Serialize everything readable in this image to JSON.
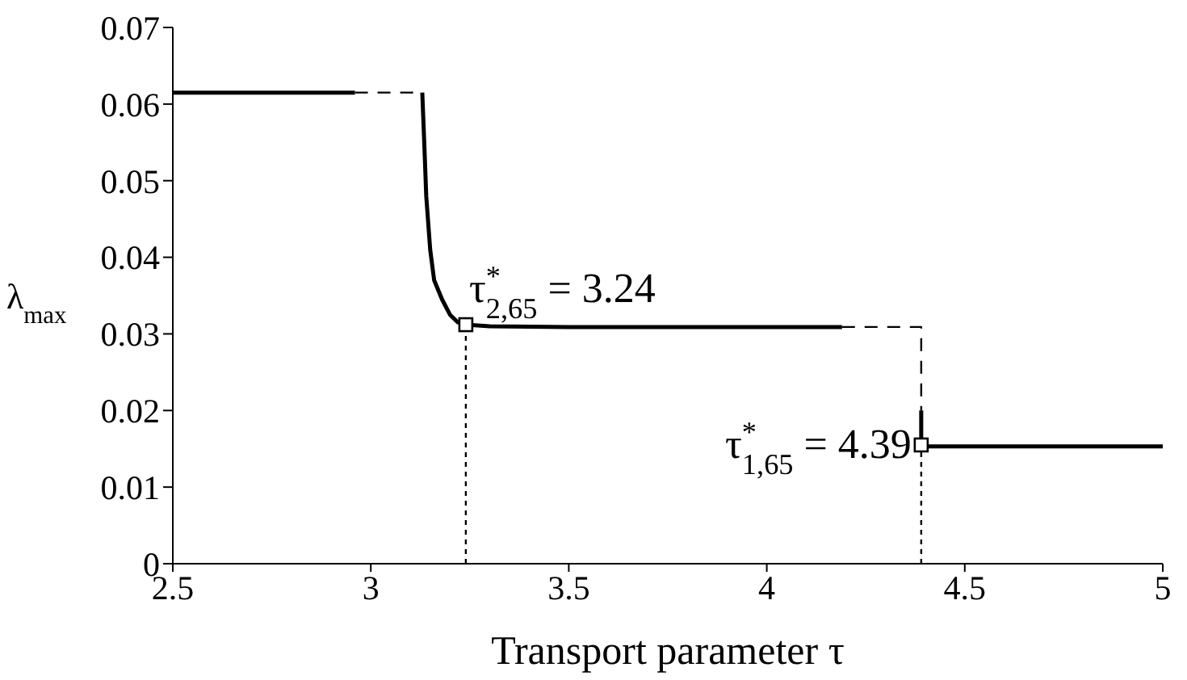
{
  "chart_data": {
    "type": "line",
    "xlabel": "Transport parameter τ",
    "ylabel": "λ$_{max}$",
    "xlim": [
      2.5,
      5
    ],
    "xticks": [
      2.5,
      3,
      3.5,
      4,
      4.5,
      5
    ],
    "ylim": [
      0,
      0.07
    ],
    "yticks": [
      0,
      0.01,
      0.02,
      0.03,
      0.04,
      0.05,
      0.06,
      0.07
    ],
    "grid": false,
    "legend": false,
    "series": [
      {
        "color": "#000000",
        "line_style": "solid",
        "x": [
          2.5,
          2.96
        ],
        "values": [
          0.0615,
          0.0615
        ]
      },
      {
        "color": "#000000",
        "line_style": "dashed",
        "x": [
          2.96,
          3.13
        ],
        "values": [
          0.0615,
          0.0615
        ]
      },
      {
        "color": "#000000",
        "line_style": "solid",
        "x": [
          3.13,
          3.135,
          3.14,
          3.15,
          3.16,
          3.18,
          3.2,
          3.22,
          3.24,
          3.3,
          3.5,
          4.19
        ],
        "values": [
          0.0615,
          0.055,
          0.048,
          0.041,
          0.037,
          0.0345,
          0.0325,
          0.0315,
          0.0312,
          0.031,
          0.0309,
          0.0309
        ]
      },
      {
        "color": "#000000",
        "line_style": "dashed",
        "x": [
          4.19,
          4.39,
          4.39
        ],
        "values": [
          0.0309,
          0.0309,
          0.02
        ]
      },
      {
        "color": "#000000",
        "line_style": "solid",
        "x": [
          4.39,
          4.39,
          4.41,
          5
        ],
        "values": [
          0.02,
          0.0155,
          0.0153,
          0.0153
        ]
      },
      {
        "color": "#000000",
        "line_style": "dotted",
        "x": [
          3.24,
          3.24
        ],
        "values": [
          0,
          0.0312
        ]
      },
      {
        "color": "#000000",
        "line_style": "dotted",
        "x": [
          4.39,
          4.39
        ],
        "values": [
          0,
          0.0155
        ]
      },
      {
        "type": "scatter",
        "color": "#000000",
        "marker": "square",
        "x": [
          3.24,
          4.39
        ],
        "values": [
          0.0312,
          0.0155
        ]
      }
    ],
    "annotations": [
      {
        "text": "τ$^{*}$$_{2,65}$ = 3.24",
        "x": 3.24,
        "y": 0.0312
      },
      {
        "text": "τ$^{*}$$_{1,65}$ = 4.39",
        "x": 4.39,
        "y": 0.0155
      }
    ]
  }
}
